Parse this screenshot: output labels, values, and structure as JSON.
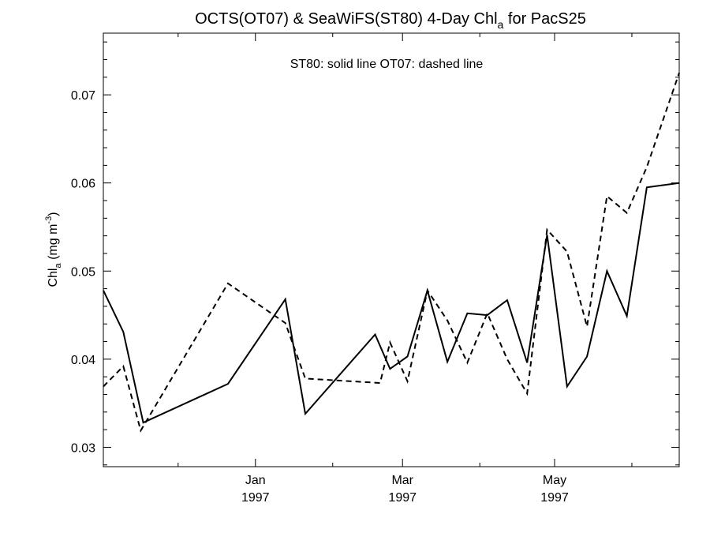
{
  "chart_data": {
    "type": "line",
    "title": {
      "prefix": "OCTS(OT07) & SeaWiFS(ST80) 4-Day Chl",
      "sub": "a",
      "suffix": " for PacS25"
    },
    "ylabel": {
      "base": "Chl",
      "sub": "a",
      "mid": " (mg m",
      "sup": "-3",
      "end": ")"
    },
    "annotation": "ST80: solid line   OT07: dashed line",
    "xlim": [
      "1996-11-01",
      "1997-06-20"
    ],
    "ylim": [
      0.0278,
      0.077
    ],
    "yticks": [
      0.03,
      0.04,
      0.05,
      0.06,
      0.07
    ],
    "ytick_labels": [
      "0.03",
      "0.04",
      "0.05",
      "0.06",
      "0.07"
    ],
    "xticks": [
      {
        "date": "1997-01-01",
        "month": "Jan",
        "year": "1997"
      },
      {
        "date": "1997-03-01",
        "month": "Mar",
        "year": "1997"
      },
      {
        "date": "1997-05-01",
        "month": "May",
        "year": "1997"
      }
    ],
    "x_minor_ticks": [
      "1996-12-01",
      "1997-02-01",
      "1997-04-01",
      "1997-06-01"
    ],
    "grid": false,
    "series": [
      {
        "name": "ST80",
        "style": "solid",
        "color": "#000000",
        "points": [
          [
            "1996-11-01",
            0.0478
          ],
          [
            "1996-11-09",
            0.0431
          ],
          [
            "1996-11-17",
            0.0328
          ],
          [
            "1996-12-21",
            0.0372
          ],
          [
            "1997-01-13",
            0.0468
          ],
          [
            "1997-01-21",
            0.0338
          ],
          [
            "1997-02-18",
            0.0428
          ],
          [
            "1997-02-24",
            0.0389
          ],
          [
            "1997-03-03",
            0.0403
          ],
          [
            "1997-03-11",
            0.0478
          ],
          [
            "1997-03-19",
            0.0397
          ],
          [
            "1997-03-27",
            0.0452
          ],
          [
            "1997-04-04",
            0.045
          ],
          [
            "1997-04-12",
            0.0467
          ],
          [
            "1997-04-20",
            0.0396
          ],
          [
            "1997-04-28",
            0.0541
          ],
          [
            "1997-05-06",
            0.0369
          ],
          [
            "1997-05-14",
            0.0403
          ],
          [
            "1997-05-22",
            0.05
          ],
          [
            "1997-05-30",
            0.0449
          ],
          [
            "1997-06-07",
            0.0595
          ],
          [
            "1997-06-20",
            0.06
          ]
        ]
      },
      {
        "name": "OT07",
        "style": "dashed",
        "color": "#000000",
        "points": [
          [
            "1996-11-01",
            0.0369
          ],
          [
            "1996-11-09",
            0.0392
          ],
          [
            "1996-11-16",
            0.0319
          ],
          [
            "1996-12-21",
            0.0486
          ],
          [
            "1997-01-13",
            0.0441
          ],
          [
            "1997-01-21",
            0.0378
          ],
          [
            "1997-02-20",
            0.0373
          ],
          [
            "1997-02-24",
            0.0419
          ],
          [
            "1997-03-03",
            0.0375
          ],
          [
            "1997-03-11",
            0.0478
          ],
          [
            "1997-03-19",
            0.0444
          ],
          [
            "1997-03-27",
            0.0396
          ],
          [
            "1997-04-04",
            0.0452
          ],
          [
            "1997-04-12",
            0.04
          ],
          [
            "1997-04-20",
            0.0361
          ],
          [
            "1997-04-28",
            0.0547
          ],
          [
            "1997-05-06",
            0.0522
          ],
          [
            "1997-05-14",
            0.0437
          ],
          [
            "1997-05-22",
            0.0585
          ],
          [
            "1997-05-30",
            0.0566
          ],
          [
            "1997-06-07",
            0.0618
          ],
          [
            "1997-06-20",
            0.0725
          ]
        ]
      }
    ]
  }
}
